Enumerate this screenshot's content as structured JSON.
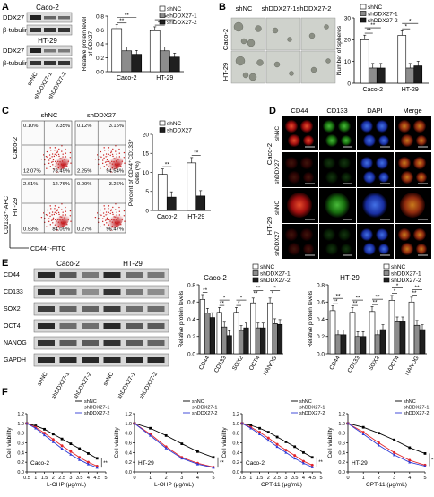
{
  "panel_labels": [
    "A",
    "B",
    "C",
    "D",
    "E",
    "F"
  ],
  "lines": {
    "caco2": "Caco-2",
    "ht29": "HT-29",
    "ddx27": "DDX27",
    "btub": "β-tubulin",
    "cd44": "CD44",
    "cd133": "CD133",
    "sox2": "SOX2",
    "oct4": "OCT4",
    "nanog": "NANOG",
    "gapdh": "GAPDH",
    "dapi": "DAPI",
    "merge": "Merge",
    "shnc": "shNC",
    "sh1": "shDDX27-1",
    "sh2": "shDDX27-2",
    "shddx27": "shDDX27",
    "cd133_apc": "CD133⁺-APC",
    "cd44_fitc": "CD44⁺-FITC"
  },
  "sig": {
    "two": "**",
    "one": "*"
  },
  "colors": {
    "shNC": "#ffffff",
    "sh1": "#8c8c8c",
    "sh2": "#1f1f1f",
    "red_flow": "#cc1f1f",
    "line_black": "#000000",
    "line_red": "#e3262b",
    "line_blue": "#2f3bd6"
  },
  "chart_data": [
    {
      "id": "A",
      "type": "bar",
      "ylabel": "Relative protein level of DDX27",
      "categories": [
        "Caco-2",
        "HT-29"
      ],
      "ylim": [
        0,
        0.8
      ],
      "yticks": [
        "0.0",
        "0.2",
        "0.4",
        "0.6",
        "0.8"
      ],
      "series": [
        {
          "name": "shNC",
          "values": [
            0.62,
            0.59
          ]
        },
        {
          "name": "shDDX27-1",
          "values": [
            0.3,
            0.3
          ]
        },
        {
          "name": "shDDX27-2",
          "values": [
            0.25,
            0.21
          ]
        }
      ]
    },
    {
      "id": "B",
      "type": "bar",
      "ylabel": "Number of spheres",
      "categories": [
        "Caco-2",
        "HT-29"
      ],
      "ylim": [
        0,
        30
      ],
      "yticks": [
        "0",
        "10",
        "20",
        "30"
      ],
      "series": [
        {
          "name": "shNC",
          "values": [
            20,
            22
          ]
        },
        {
          "name": "shDDX27-1",
          "values": [
            7,
            7
          ]
        },
        {
          "name": "shDDX27-2",
          "values": [
            7,
            8
          ]
        }
      ]
    },
    {
      "id": "C",
      "type": "bar",
      "ylabel": "Percent of CD44⁺CD133⁺ cells (%)",
      "categories": [
        "Caco-2",
        "HT-29"
      ],
      "ylim": [
        0,
        20
      ],
      "yticks": [
        "0",
        "5",
        "10",
        "15",
        "20"
      ],
      "series": [
        {
          "name": "shNC",
          "values": [
            9.5,
            12.5
          ]
        },
        {
          "name": "shDDX27",
          "values": [
            3.5,
            3.8
          ]
        }
      ]
    },
    {
      "id": "E1",
      "type": "bar",
      "title": "Caco-2",
      "ylabel": "Relative protein levels",
      "categories": [
        "CD44",
        "CD133",
        "SOX2",
        "OCT4",
        "NANOG"
      ],
      "ylim": [
        0,
        0.8
      ],
      "yticks": [
        "0.0",
        "0.2",
        "0.4",
        "0.6",
        "0.8"
      ],
      "series": [
        {
          "name": "shNC",
          "values": [
            0.63,
            0.48,
            0.48,
            0.59,
            0.59
          ]
        },
        {
          "name": "shDDX27-1",
          "values": [
            0.47,
            0.31,
            0.27,
            0.3,
            0.35
          ]
        },
        {
          "name": "shDDX27-2",
          "values": [
            0.42,
            0.21,
            0.3,
            0.3,
            0.34
          ]
        }
      ]
    },
    {
      "id": "E2",
      "type": "bar",
      "title": "HT-29",
      "ylabel": "Relative protein levels",
      "categories": [
        "CD44",
        "CD133",
        "SOX2",
        "OCT4",
        "NANOG"
      ],
      "ylim": [
        0,
        0.8
      ],
      "yticks": [
        "0.0",
        "0.2",
        "0.4",
        "0.6",
        "0.8"
      ],
      "series": [
        {
          "name": "shNC",
          "values": [
            0.5,
            0.48,
            0.49,
            0.62,
            0.6
          ]
        },
        {
          "name": "shDDX27-1",
          "values": [
            0.22,
            0.2,
            0.22,
            0.37,
            0.33
          ]
        },
        {
          "name": "shDDX27-2",
          "values": [
            0.22,
            0.2,
            0.28,
            0.37,
            0.28
          ]
        }
      ]
    },
    {
      "id": "F1",
      "type": "line",
      "label": "Caco-2",
      "ylabel": "Cell viability",
      "xlabel": "L-OHP (μg/mL)",
      "x": [
        0.5,
        1.0,
        1.5,
        2.0,
        2.5,
        3.0,
        3.5,
        4.0,
        4.5
      ],
      "xlim": [
        0.5,
        5
      ],
      "xticks": [
        "0.5",
        "1",
        "1.5",
        "2",
        "2.5",
        "3",
        "3.5",
        "4",
        "4.5",
        "5"
      ],
      "ylim": [
        0,
        1.2
      ],
      "yticks": [
        "0.0",
        "0.2",
        "0.4",
        "0.6",
        "0.8",
        "1.0",
        "1.2"
      ],
      "series": [
        {
          "name": "shNC",
          "values": [
            1.0,
            0.95,
            0.88,
            0.78,
            0.68,
            0.58,
            0.48,
            0.38,
            0.28
          ]
        },
        {
          "name": "shDDX27-1",
          "values": [
            1.0,
            0.92,
            0.8,
            0.67,
            0.54,
            0.42,
            0.3,
            0.2,
            0.12
          ]
        },
        {
          "name": "shDDX27-2",
          "values": [
            1.0,
            0.9,
            0.76,
            0.62,
            0.48,
            0.36,
            0.25,
            0.16,
            0.09
          ]
        }
      ]
    },
    {
      "id": "F2",
      "type": "line",
      "label": "HT-29",
      "ylabel": "Cell viability",
      "xlabel": "L-OHP (μg/mL)",
      "x": [
        0,
        1,
        2,
        3,
        4,
        5
      ],
      "xlim": [
        0,
        5
      ],
      "xticks": [
        "0",
        "1",
        "2",
        "3",
        "4",
        "5"
      ],
      "ylim": [
        0,
        1.2
      ],
      "yticks": [
        "0.0",
        "0.2",
        "0.4",
        "0.6",
        "0.8",
        "1.0",
        "1.2"
      ],
      "series": [
        {
          "name": "shNC",
          "values": [
            1.0,
            0.9,
            0.75,
            0.58,
            0.42,
            0.3
          ]
        },
        {
          "name": "shDDX27-1",
          "values": [
            1.0,
            0.78,
            0.52,
            0.3,
            0.18,
            0.1
          ]
        },
        {
          "name": "shDDX27-2",
          "values": [
            1.0,
            0.75,
            0.49,
            0.28,
            0.16,
            0.09
          ]
        }
      ]
    },
    {
      "id": "F3",
      "type": "line",
      "label": "Caco-2",
      "ylabel": "Cell viability",
      "xlabel": "CPT-11 (μg/mL)",
      "x": [
        0.5,
        1.0,
        1.5,
        2.0,
        2.5,
        3.0,
        3.5,
        4.0,
        4.5
      ],
      "xlim": [
        0.5,
        5
      ],
      "xticks": [
        "0.5",
        "1",
        "1.5",
        "2",
        "2.5",
        "3",
        "3.5",
        "4",
        "4.5",
        "5"
      ],
      "ylim": [
        0,
        1.2
      ],
      "yticks": [
        "0.0",
        "0.2",
        "0.4",
        "0.6",
        "0.8",
        "1.0",
        "1.2"
      ],
      "series": [
        {
          "name": "shNC",
          "values": [
            1.0,
            0.96,
            0.9,
            0.82,
            0.72,
            0.62,
            0.52,
            0.4,
            0.3
          ]
        },
        {
          "name": "shDDX27-1",
          "values": [
            1.0,
            0.92,
            0.82,
            0.7,
            0.57,
            0.45,
            0.34,
            0.22,
            0.14
          ]
        },
        {
          "name": "shDDX27-2",
          "values": [
            1.0,
            0.9,
            0.78,
            0.65,
            0.52,
            0.4,
            0.28,
            0.18,
            0.1
          ]
        }
      ]
    },
    {
      "id": "F4",
      "type": "line",
      "label": "HT-29",
      "ylabel": "Cell viability",
      "xlabel": "CPT-11 (μg/mL)",
      "x": [
        0,
        1,
        2,
        3,
        4,
        5
      ],
      "xlim": [
        0,
        5
      ],
      "xticks": [
        "0",
        "1",
        "2",
        "3",
        "4",
        "5"
      ],
      "ylim": [
        0,
        1.2
      ],
      "yticks": [
        "0.0",
        "0.2",
        "0.4",
        "0.6",
        "0.8",
        "1.0",
        "1.2"
      ],
      "series": [
        {
          "name": "shNC",
          "values": [
            1.0,
            0.92,
            0.8,
            0.66,
            0.5,
            0.38
          ]
        },
        {
          "name": "shDDX27-1",
          "values": [
            1.0,
            0.82,
            0.6,
            0.4,
            0.24,
            0.14
          ]
        },
        {
          "name": "shDDX27-2",
          "values": [
            1.0,
            0.78,
            0.55,
            0.35,
            0.2,
            0.12
          ]
        }
      ]
    }
  ],
  "flow": {
    "caco2_shnc": [
      "0.10%",
      "9.35%",
      "12.07%",
      "78.49%"
    ],
    "caco2_shddx27": [
      "0.12%",
      "3.15%",
      "2.25%",
      "94.54%"
    ],
    "ht29_shnc": [
      "2.61%",
      "12.76%",
      "0.53%",
      "84.09%"
    ],
    "ht29_shddx27": [
      "0.00%",
      "3.26%",
      "0.27%",
      "96.47%"
    ]
  }
}
